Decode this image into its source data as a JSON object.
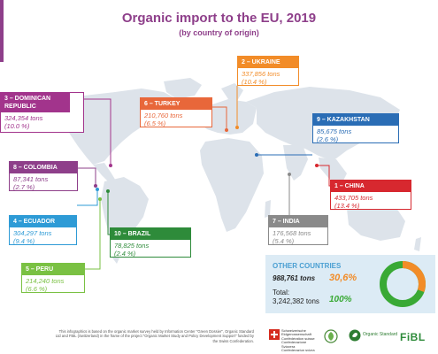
{
  "title": "Organic import to the EU, 2019",
  "subtitle": "(by country of origin)",
  "colors": {
    "purple": "#8e3f8a",
    "orange": "#f28c28",
    "blue": "#2a6db5",
    "crimson": "#c1272d",
    "grey": "#8a8a8a",
    "green": "#2e8b3a",
    "lightgreen": "#7ac143",
    "cyan": "#2e9bd6",
    "magenta": "#a2348c",
    "coral": "#e8673a",
    "map": "#dde3ea"
  },
  "chart_data": {
    "type": "map",
    "unit": "tons",
    "entries": [
      {
        "label": "1 – CHINA",
        "rank": 1,
        "country": "CHINA",
        "tons": 433705,
        "tons_text": "433,705 tons",
        "share_text": "(13.4 %)",
        "share": 13.4,
        "color": "#d7282f"
      },
      {
        "label": "2 – UKRAINE",
        "rank": 2,
        "country": "UKRAINE",
        "tons": 337856,
        "tons_text": "337,856 tons",
        "share_text": "(10.4 %)",
        "share": 10.4,
        "color": "#f28c28"
      },
      {
        "label": "3 – DOMINICAN REPUBLIC",
        "rank": 3,
        "country": "DOMINICAN REPUBLIC",
        "tons": 324354,
        "tons_text": "324,354 tons",
        "share_text": "(10.0 %)",
        "share": 10.0,
        "color": "#a2348c"
      },
      {
        "label": "6 – TURKEY",
        "rank": 6,
        "country": "TURKEY",
        "tons": 210760,
        "tons_text": "210,760 tons",
        "share_text": "(6.5 %)",
        "share": 6.5,
        "color": "#e8673a"
      },
      {
        "label": "9 – KAZAKHSTAN",
        "rank": 9,
        "country": "KAZAKHSTAN",
        "tons": 85675,
        "tons_text": "85,675 tons",
        "share_text": "(2.6 %)",
        "share": 2.6,
        "color": "#2a6db5"
      },
      {
        "label": "8 – COLOMBIA",
        "rank": 8,
        "country": "COLOMBIA",
        "tons": 87341,
        "tons_text": "87,341 tons",
        "share_text": "(2.7 %)",
        "share": 2.7,
        "color": "#8e3f8a"
      },
      {
        "label": "4 – ECUADOR",
        "rank": 4,
        "country": "ECUADOR",
        "tons": 304297,
        "tons_text": "304,297 tons",
        "share_text": "(9.4 %)",
        "share": 9.4,
        "color": "#2e9bd6"
      },
      {
        "label": "10 – BRAZIL",
        "rank": 10,
        "country": "BRAZIL",
        "tons": 78825,
        "tons_text": "78,825 tons",
        "share_text": "(2.4 %)",
        "share": 2.4,
        "color": "#2e8b3a"
      },
      {
        "label": "5 – PERU",
        "rank": 5,
        "country": "PERU",
        "tons": 214240,
        "tons_text": "214,240 tons",
        "share_text": "(6.6 %)",
        "share": 6.6,
        "color": "#7ac143"
      },
      {
        "label": "7 – INDIA",
        "rank": 7,
        "country": "INDIA",
        "tons": 176568,
        "tons_text": "176,568 tons",
        "share_text": "(5.4 %)",
        "share": 5.4,
        "color": "#8a8a8a"
      }
    ],
    "other": {
      "label": "OTHER COUNTRIES",
      "tons_text": "988,761 tons",
      "share_text": "30,6%",
      "share": 30.6
    },
    "total": {
      "label": "Total:",
      "tons_text": "3,242,382 tons",
      "share_text": "100%",
      "share": 100
    }
  },
  "footnote": "This infographics is based on the organic market survey held by Information Center \"Green Dossier\", Organic Standard Ltd and FiBL (Switzerland) in the frame of the project \"Organic Market Study and Policy Development Support\" funded by the Swiss Confederation.",
  "logos": {
    "swiss": "Schweizerische Eidgenossenschaft Confédération suisse Confederazione Svizzera Confederaziun svizra",
    "organic_standard": "Organic Standard",
    "fibl": "FiBL"
  }
}
